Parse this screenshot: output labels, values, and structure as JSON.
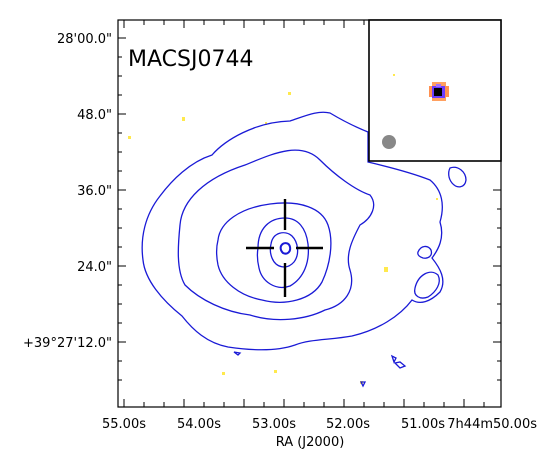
{
  "figure": {
    "name": "MACSJ0744",
    "x_axis_label": "RA (J2000)",
    "x_tick_labels": [
      "55.00s",
      "54.00s",
      "53.00s",
      "52.00s",
      "51.00s",
      "7h44m50.00s"
    ],
    "y_tick_labels": [
      "28'00.0\"",
      "48.0\"",
      "36.0\"",
      "24.0\"",
      "+39°27'12.0\""
    ]
  },
  "colors": {
    "contour": "#1a1ad6",
    "frame": "#000000",
    "crosshair": "#000000",
    "beam": "#888888",
    "speckle": "#ffe94d"
  }
}
